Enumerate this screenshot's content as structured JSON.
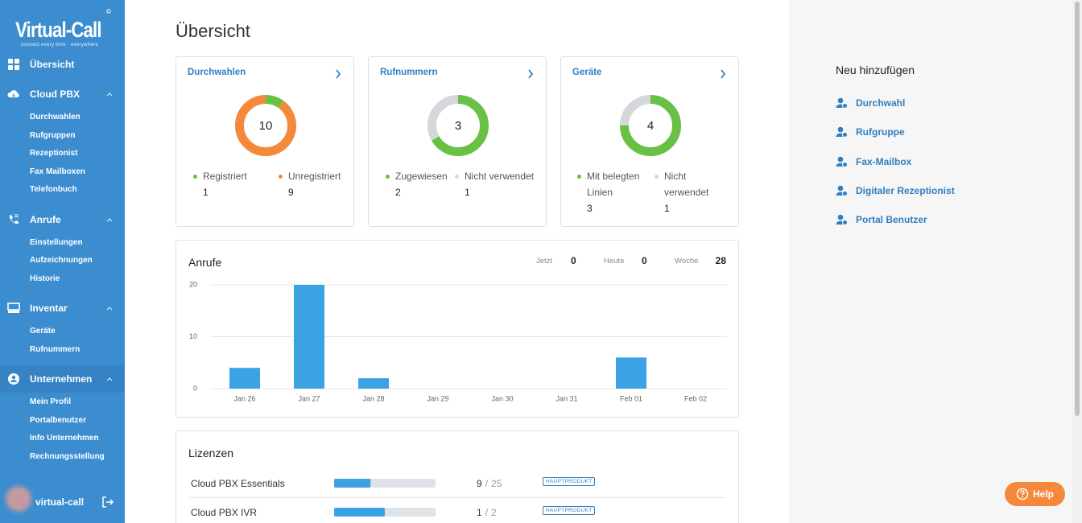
{
  "sidebar": {
    "logo": "Virtual-Call",
    "tagline": "connect every time · everywhere",
    "sections": [
      {
        "label": "Übersicht",
        "items": []
      },
      {
        "label": "Cloud PBX",
        "items": [
          "Durchwahlen",
          "Rufgruppen",
          "Rezeptionist",
          "Fax Mailboxen",
          "Telefonbuch"
        ]
      },
      {
        "label": "Anrufe",
        "items": [
          "Einstellungen",
          "Aufzeichnungen",
          "Historie"
        ]
      },
      {
        "label": "Inventar",
        "items": [
          "Geräte",
          "Rufnummern"
        ]
      },
      {
        "label": "Unternehmen",
        "items": [
          "Mein Profil",
          "Portalbenutzer",
          "Info Unternehmen",
          "Rechnungsstellung"
        ]
      }
    ],
    "user": "virtual-call"
  },
  "page_title": "Übersicht",
  "cards": [
    {
      "title": "Durchwahlen",
      "total": 10,
      "segments": [
        {
          "name": "Registriert",
          "value": 1,
          "color": "#6abf45"
        },
        {
          "name": "Unregistriert",
          "value": 9,
          "color": "#f5893b"
        }
      ]
    },
    {
      "title": "Rufnummern",
      "total": 3,
      "segments": [
        {
          "name": "Zugewiesen",
          "value": 2,
          "color": "#6abf45"
        },
        {
          "name": "Nicht verwendet",
          "value": 1,
          "color": "#d4d7db"
        }
      ]
    },
    {
      "title": "Geräte",
      "total": 4,
      "segments": [
        {
          "name": "Mit belegten Linien",
          "value": 3,
          "color": "#6abf45"
        },
        {
          "name": "Nicht verwendet",
          "value": 1,
          "color": "#d4d7db"
        }
      ]
    }
  ],
  "calls": {
    "title": "Anrufe",
    "stats": [
      {
        "label": "Jetzt",
        "value": 0
      },
      {
        "label": "Heute",
        "value": 0
      },
      {
        "label": "Woche",
        "value": 28
      }
    ]
  },
  "chart_data": {
    "type": "bar",
    "categories": [
      "Jan 26",
      "Jan 27",
      "Jan 28",
      "Jan 29",
      "Jan 30",
      "Jan 31",
      "Feb 01",
      "Feb 02"
    ],
    "values": [
      4,
      20,
      2,
      0,
      0,
      0,
      6,
      0
    ],
    "color": "#3ba3e4",
    "ylim": [
      0,
      20
    ],
    "yticks": [
      0,
      10,
      20
    ],
    "grid": true
  },
  "licenses": {
    "title": "Lizenzen",
    "separator": "/",
    "rows": [
      {
        "name": "Cloud PBX Essentials",
        "used": 9,
        "total": 25,
        "badge": "HAUPTPRODUKT"
      },
      {
        "name": "Cloud PBX IVR",
        "used": 1,
        "total": 2,
        "badge": "HAUPTPRODUKT"
      }
    ]
  },
  "quick_add": {
    "title": "Neu hinzufügen",
    "items": [
      "Durchwahl",
      "Rufgruppe",
      "Fax-Mailbox",
      "Digitaler Rezeptionist",
      "Portal Benutzer"
    ]
  },
  "help": "Help"
}
